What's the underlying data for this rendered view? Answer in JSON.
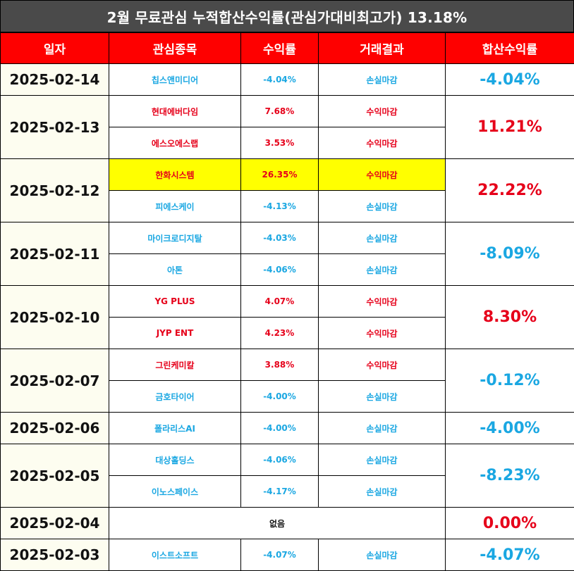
{
  "title": "2월 무료관심 누적합산수익률(관심가대비최고가) 13.18%",
  "headers": [
    "일자",
    "관심종목",
    "수익률",
    "거래결과",
    "합산수익률"
  ],
  "colors": {
    "header_bg": "#fe0000",
    "title_bg": "#4a4a4a",
    "profit": "#e6001a",
    "loss": "#1aa7e2",
    "highlight": "#ffff00"
  },
  "groups": [
    {
      "date": "2025-02-14",
      "total": "-4.04%",
      "total_dir": "down",
      "rows": [
        {
          "name": "칩스앤미디어",
          "ret": "-4.04%",
          "result": "손실마감",
          "dir": "down"
        }
      ]
    },
    {
      "date": "2025-02-13",
      "total": "11.21%",
      "total_dir": "up",
      "rows": [
        {
          "name": "현대에버다임",
          "ret": "7.68%",
          "result": "수익마감",
          "dir": "up"
        },
        {
          "name": "에스오에스랩",
          "ret": "3.53%",
          "result": "수익마감",
          "dir": "up"
        }
      ]
    },
    {
      "date": "2025-02-12",
      "total": "22.22%",
      "total_dir": "up",
      "rows": [
        {
          "name": "한화시스템",
          "ret": "26.35%",
          "result": "수익마감",
          "dir": "up",
          "highlight": true
        },
        {
          "name": "피에스케이",
          "ret": "-4.13%",
          "result": "손실마감",
          "dir": "down"
        }
      ]
    },
    {
      "date": "2025-02-11",
      "total": "-8.09%",
      "total_dir": "down",
      "rows": [
        {
          "name": "마이크로디지탈",
          "ret": "-4.03%",
          "result": "손실마감",
          "dir": "down"
        },
        {
          "name": "아톤",
          "ret": "-4.06%",
          "result": "손실마감",
          "dir": "down"
        }
      ]
    },
    {
      "date": "2025-02-10",
      "total": "8.30%",
      "total_dir": "up",
      "rows": [
        {
          "name": "YG PLUS",
          "ret": "4.07%",
          "result": "수익마감",
          "dir": "up"
        },
        {
          "name": "JYP ENT",
          "ret": "4.23%",
          "result": "수익마감",
          "dir": "up"
        }
      ]
    },
    {
      "date": "2025-02-07",
      "total": "-0.12%",
      "total_dir": "down",
      "rows": [
        {
          "name": "그린케미칼",
          "ret": "3.88%",
          "result": "수익마감",
          "dir": "up"
        },
        {
          "name": "금호타이어",
          "ret": "-4.00%",
          "result": "손실마감",
          "dir": "down"
        }
      ]
    },
    {
      "date": "2025-02-06",
      "total": "-4.00%",
      "total_dir": "down",
      "rows": [
        {
          "name": "폴라리스AI",
          "ret": "-4.00%",
          "result": "손실마감",
          "dir": "down"
        }
      ]
    },
    {
      "date": "2025-02-05",
      "total": "-8.23%",
      "total_dir": "down",
      "rows": [
        {
          "name": "대상홀딩스",
          "ret": "-4.06%",
          "result": "손실마감",
          "dir": "down"
        },
        {
          "name": "이노스페이스",
          "ret": "-4.17%",
          "result": "손실마감",
          "dir": "down"
        }
      ]
    },
    {
      "date": "2025-02-04",
      "total": "0.00%",
      "total_dir": "zero",
      "none_label": "없음",
      "rows": []
    },
    {
      "date": "2025-02-03",
      "total": "-4.07%",
      "total_dir": "down",
      "rows": [
        {
          "name": "이스트소프트",
          "ret": "-4.07%",
          "result": "손실마감",
          "dir": "down"
        }
      ]
    }
  ]
}
